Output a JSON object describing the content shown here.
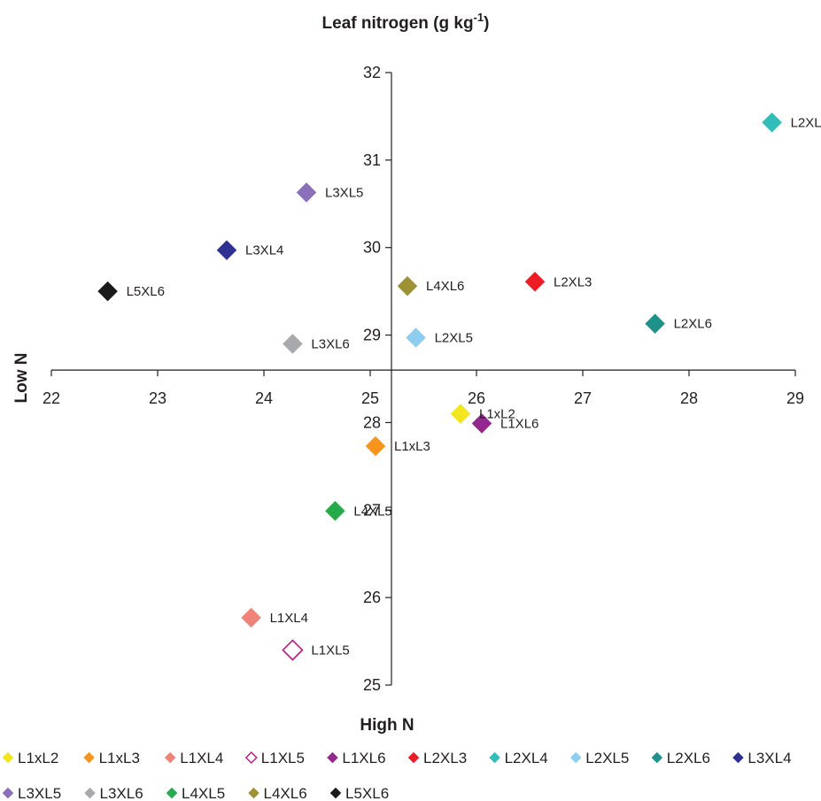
{
  "chart_data": {
    "type": "scatter",
    "title": "Leaf nitrogen (g kg",
    "title_sup": "-1",
    "title_close": ")",
    "xlabel": "High N",
    "ylabel": "Low N",
    "xlim": [
      22,
      29
    ],
    "ylim": [
      25,
      32
    ],
    "x_ticks": [
      22,
      23,
      24,
      25,
      26,
      27,
      28,
      29
    ],
    "y_ticks": [
      25,
      26,
      27,
      28,
      29,
      30,
      31,
      32
    ],
    "axis_cross": {
      "x": 25.2,
      "y": 28.6
    },
    "grid": false,
    "legend_position": "bottom",
    "series": [
      {
        "name": "L1xL2",
        "x": 25.85,
        "y": 28.1,
        "color": "#f4e61e",
        "fill": true
      },
      {
        "name": "L1xL3",
        "x": 25.05,
        "y": 27.73,
        "color": "#f7941d",
        "fill": true
      },
      {
        "name": "L1XL4",
        "x": 23.88,
        "y": 25.77,
        "color": "#f08378",
        "fill": true
      },
      {
        "name": "L1XL5",
        "x": 24.27,
        "y": 25.4,
        "color": "#b5187f",
        "fill": false
      },
      {
        "name": "L1XL6",
        "x": 26.05,
        "y": 27.99,
        "color": "#93278f",
        "fill": true
      },
      {
        "name": "L2XL3",
        "x": 26.55,
        "y": 29.61,
        "color": "#ed1c24",
        "fill": true
      },
      {
        "name": "L2XL4",
        "x": 28.78,
        "y": 31.43,
        "color": "#33bdb8",
        "fill": true
      },
      {
        "name": "L2XL5",
        "x": 25.43,
        "y": 28.97,
        "color": "#8dcef0",
        "fill": true
      },
      {
        "name": "L2XL6",
        "x": 27.68,
        "y": 29.13,
        "color": "#1e918b",
        "fill": true
      },
      {
        "name": "L3XL4",
        "x": 23.65,
        "y": 29.97,
        "color": "#2e3192",
        "fill": true
      },
      {
        "name": "L3XL5",
        "x": 24.4,
        "y": 30.63,
        "color": "#8a6fbb",
        "fill": true
      },
      {
        "name": "L3XL6",
        "x": 24.27,
        "y": 28.9,
        "color": "#a7a9ac",
        "fill": true
      },
      {
        "name": "L4XL5",
        "x": 24.67,
        "y": 26.99,
        "color": "#27aa4a",
        "fill": true
      },
      {
        "name": "L4XL6",
        "x": 25.35,
        "y": 29.56,
        "color": "#9e9237",
        "fill": true
      },
      {
        "name": "L5XL6",
        "x": 22.53,
        "y": 29.5,
        "color": "#1a1a1a",
        "fill": true
      }
    ]
  }
}
